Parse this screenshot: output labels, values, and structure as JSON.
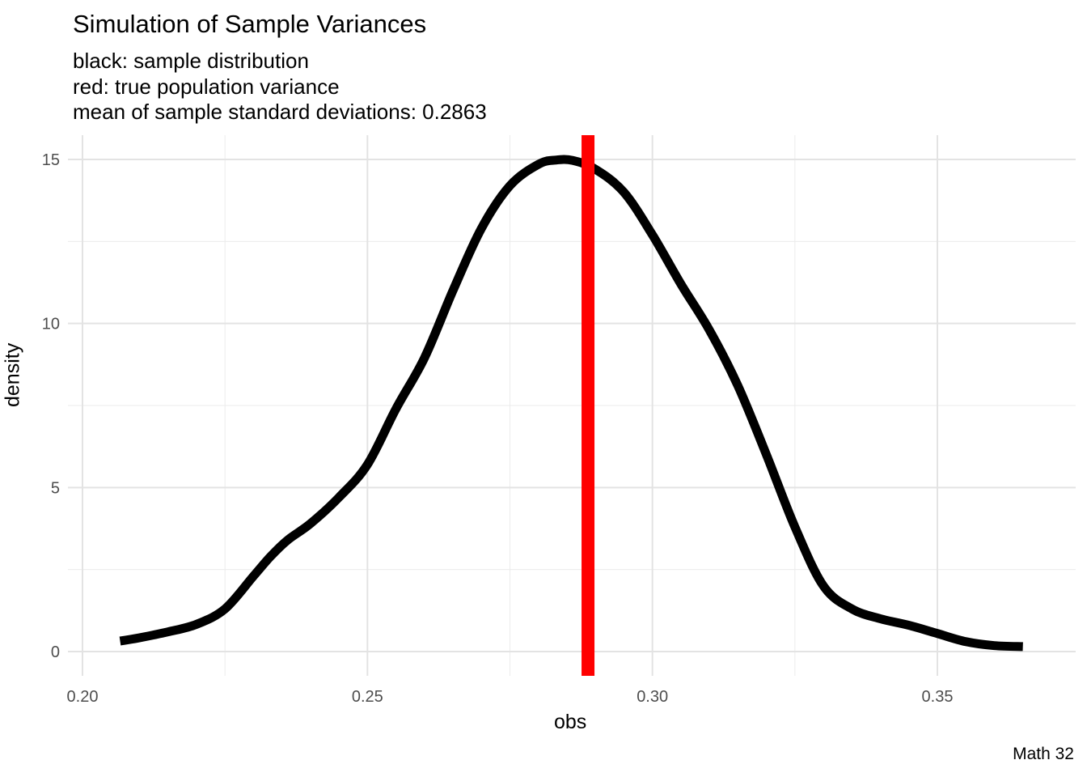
{
  "chart_data": {
    "type": "line",
    "title": "Simulation of Sample Variances",
    "subtitle_lines": [
      "black: sample distribution",
      "red: true population variance",
      "mean of sample standard deviations:  0.2863"
    ],
    "caption": "Math 32",
    "xlabel": "obs",
    "ylabel": "density",
    "xlim": [
      0.2,
      0.365
    ],
    "ylim": [
      -0.7,
      15.7
    ],
    "x_ticks": [
      0.2,
      0.25,
      0.3,
      0.35
    ],
    "x_tick_labels": [
      "0.20",
      "0.25",
      "0.30",
      "0.35"
    ],
    "y_ticks": [
      0,
      5,
      10,
      15
    ],
    "y_tick_labels": [
      "0",
      "5",
      "10",
      "15"
    ],
    "grid": true,
    "series": [
      {
        "color": "#000000",
        "x": [
          0.2066,
          0.21,
          0.215,
          0.22,
          0.225,
          0.23,
          0.233,
          0.236,
          0.24,
          0.245,
          0.25,
          0.255,
          0.26,
          0.265,
          0.27,
          0.275,
          0.28,
          0.283,
          0.286,
          0.29,
          0.295,
          0.3,
          0.305,
          0.31,
          0.315,
          0.32,
          0.325,
          0.33,
          0.335,
          0.34,
          0.345,
          0.35,
          0.355,
          0.36,
          0.365
        ],
        "y": [
          0.32,
          0.42,
          0.6,
          0.83,
          1.3,
          2.3,
          2.9,
          3.4,
          3.9,
          4.7,
          5.7,
          7.4,
          8.95,
          11.0,
          12.9,
          14.2,
          14.85,
          14.98,
          14.97,
          14.7,
          14.0,
          12.7,
          11.2,
          9.8,
          8.1,
          6.0,
          3.8,
          2.0,
          1.3,
          1.0,
          0.8,
          0.55,
          0.3,
          0.18,
          0.15
        ]
      }
    ],
    "vline": {
      "x": 0.2887,
      "color": "#ff0000"
    }
  }
}
